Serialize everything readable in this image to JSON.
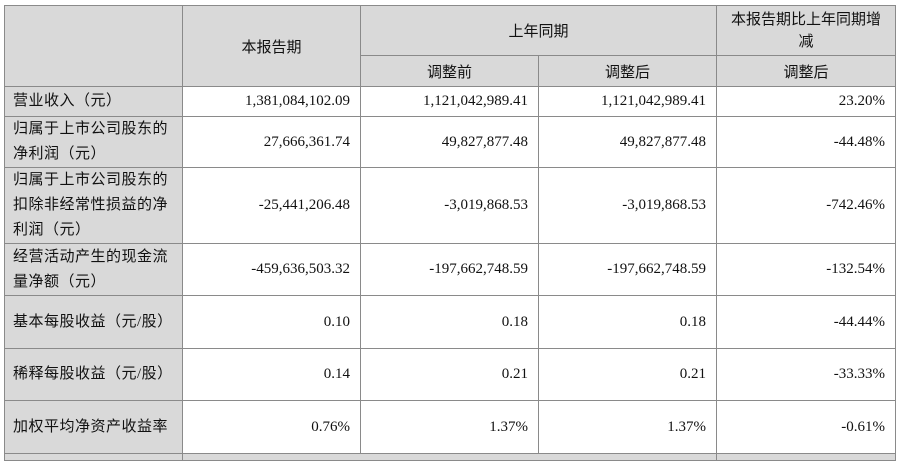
{
  "header": {
    "current_period": "本报告期",
    "prior_period": "上年同期",
    "change": "本报告期比上年同期增减",
    "before_adjust": "调整前",
    "after_adjust": "调整后",
    "change_after_adjust": "调整后"
  },
  "rows": [
    {
      "label": "营业收入（元）",
      "current": "1,381,084,102.09",
      "before": "1,121,042,989.41",
      "after": "1,121,042,989.41",
      "change": "23.20%"
    },
    {
      "label": "归属于上市公司股东的净利润（元）",
      "current": "27,666,361.74",
      "before": "49,827,877.48",
      "after": "49,827,877.48",
      "change": "-44.48%"
    },
    {
      "label": "归属于上市公司股东的扣除非经常性损益的净利润（元）",
      "current": "-25,441,206.48",
      "before": "-3,019,868.53",
      "after": "-3,019,868.53",
      "change": "-742.46%"
    },
    {
      "label": "经营活动产生的现金流量净额（元）",
      "current": "-459,636,503.32",
      "before": "-197,662,748.59",
      "after": "-197,662,748.59",
      "change": "-132.54%"
    },
    {
      "label": "基本每股收益（元/股）",
      "current": "0.10",
      "before": "0.18",
      "after": "0.18",
      "change": "-44.44%"
    },
    {
      "label": "稀释每股收益（元/股）",
      "current": "0.14",
      "before": "0.21",
      "after": "0.21",
      "change": "-33.33%"
    },
    {
      "label": "加权平均净资产收益率",
      "current": "0.76%",
      "before": "1.37%",
      "after": "1.37%",
      "change": "-0.61%"
    }
  ]
}
